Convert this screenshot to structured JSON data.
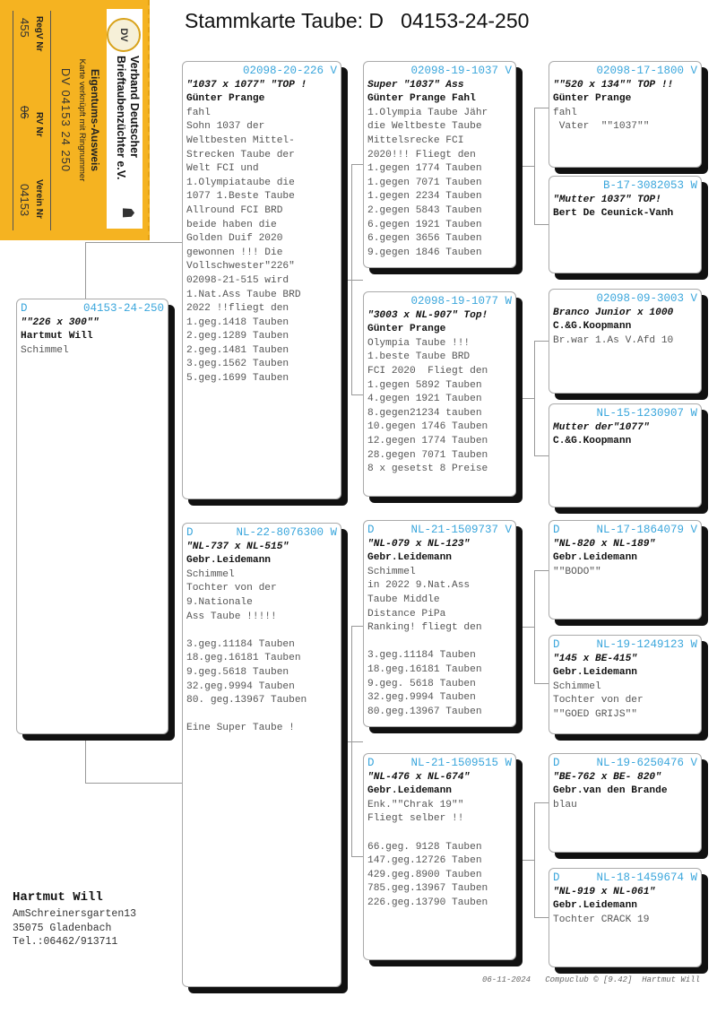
{
  "title": "Stammkarte Taube: D   04153-24-250",
  "card": {
    "org_line1": "Verband Deutscher",
    "org_line2": "Brieftaubenzüchter e.V.",
    "heading": "Eigentums-Ausweis",
    "subheading": "Karte verknüpft mit Ringnummer",
    "ring": "DV 04153 24 250",
    "labels": [
      "RegV Nr",
      "RV Nr",
      "Verein Nr"
    ],
    "values": [
      "455",
      "06",
      "04153"
    ],
    "logo_text": "DV",
    "background_color": "#f5b321"
  },
  "animals": [
    {
      "prefix": "D",
      "ring": "04153-24-250",
      "sex": "",
      "italic": "\"\"226 x 300\"\"",
      "breeder": "Hartmut Will",
      "lines": [
        "Schimmel"
      ]
    },
    {
      "prefix": "",
      "ring": "02098-20-226",
      "sex": "V",
      "italic": "\"1037 x 1077\" \"TOP !",
      "breeder": "Günter Prange",
      "lines": [
        "fahl",
        "Sohn 1037 der",
        "Weltbesten Mittel-",
        "Strecken Taube der",
        "Welt FCI und",
        "1.Olympiataube die",
        "1077 1.Beste Taube",
        "Allround FCI BRD",
        "beide haben die",
        "Golden Duif 2020",
        "gewonnen !!! Die",
        "Vollschwester\"226\"",
        "02098-21-515 wird",
        "1.Nat.Ass Taube BRD",
        "2022 !!fliegt den",
        "1.geg.1418 Tauben",
        "2.geg.1289 Tauben",
        "2.geg.1481 Tauben",
        "3.geg.1562 Tauben",
        "5.geg.1699 Tauben"
      ]
    },
    {
      "prefix": "D",
      "ring": "NL-22-8076300",
      "sex": "W",
      "italic": "\"NL-737 x NL-515\"",
      "breeder": "Gebr.Leidemann",
      "lines": [
        "Schimmel",
        "Tochter von der",
        "9.Nationale",
        "Ass Taube !!!!!",
        "",
        "3.geg.11184 Tauben",
        "18.geg.16181 Tauben",
        "9.geg.5618 Tauben",
        "32.geg.9994 Tauben",
        "80. geg.13967 Tauben",
        "",
        "Eine Super Taube !"
      ]
    },
    {
      "prefix": "",
      "ring": "02098-19-1037",
      "sex": "V",
      "italic": "Super \"1037\" Ass",
      "breeder": "Günter Prange Fahl",
      "lines": [
        "1.Olympia Taube Jähr",
        "die Weltbeste Taube",
        "Mittelsrecke FCI",
        "2020!!! Fliegt den",
        "1.gegen 1774 Tauben",
        "1.gegen 7071 Tauben",
        "1.gegen 2234 Tauben",
        "2.gegen 5843 Tauben",
        "6.gegen 1921 Tauben",
        "6.gegen 3656 Tauben",
        "9.gegen 1846 Tauben"
      ]
    },
    {
      "prefix": "",
      "ring": "02098-19-1077",
      "sex": "W",
      "italic": "\"3003 x NL-907\" Top!",
      "breeder": "Günter Prange",
      "lines": [
        "Olympia Taube !!!",
        "1.beste Taube BRD",
        "FCI 2020  Fliegt den",
        "1.gegen 5892 Tauben",
        "4.gegen 1921 Tauben",
        "8.gegen21234 tauben",
        "10.gegen 1746 Tauben",
        "12.gegen 1774 Tauben",
        "28.gegen 7071 Tauben",
        "8 x gesetst 8 Preise"
      ]
    },
    {
      "prefix": "D",
      "ring": "NL-21-1509737",
      "sex": "V",
      "italic": "\"NL-079 x NL-123\"",
      "breeder": "Gebr.Leidemann",
      "lines": [
        "Schimmel",
        "in 2022 9.Nat.Ass",
        "Taube Middle",
        "Distance PiPa",
        "Ranking! fliegt den",
        "",
        "3.geg.11184 Tauben",
        "18.geg.16181 Tauben",
        "9.geg. 5618 Tauben",
        "32.geg.9994 Tauben",
        "80.geg.13967 Tauben"
      ]
    },
    {
      "prefix": "D",
      "ring": "NL-21-1509515",
      "sex": "W",
      "italic": "\"NL-476 x NL-674\"",
      "breeder": "Gebr.Leidemann",
      "lines": [
        "Enk.\"\"Chrak 19\"\"",
        "Fliegt selber !!",
        "",
        "66.geg. 9128 Tauben",
        "147.geg.12726 Taben",
        "429.geg.8900 Tauben",
        "785.geg.13967 Tauben",
        "226.geg.13790 Tauben"
      ]
    },
    {
      "prefix": "",
      "ring": "02098-17-1800",
      "sex": "V",
      "italic": "\"\"520 x 134\"\" TOP !!",
      "breeder": "Günter Prange",
      "lines": [
        "fahl",
        " Vater  \"\"1037\"\""
      ]
    },
    {
      "prefix": "",
      "ring": "B-17-3082053",
      "sex": "W",
      "italic": "\"Mutter 1037\" TOP!",
      "breeder": "Bert De Ceunick-Vanh",
      "lines": []
    },
    {
      "prefix": "",
      "ring": "02098-09-3003",
      "sex": "V",
      "italic": "Branco Junior x 1000",
      "breeder": "C.&G.Koopmann",
      "lines": [
        "Br.war 1.As V.Afd 10"
      ]
    },
    {
      "prefix": "",
      "ring": "NL-15-1230907",
      "sex": "W",
      "italic": "Mutter der\"1077\"",
      "breeder": "C.&G.Koopmann",
      "lines": []
    },
    {
      "prefix": "D",
      "ring": "NL-17-1864079",
      "sex": "V",
      "italic": "\"NL-820 x NL-189\"",
      "breeder": "Gebr.Leidemann",
      "lines": [
        "\"\"BODO\"\""
      ]
    },
    {
      "prefix": "D",
      "ring": "NL-19-1249123",
      "sex": "W",
      "italic": "\"145 x BE-415\"",
      "breeder": "Gebr.Leidemann",
      "lines": [
        "Schimmel",
        "Tochter von der",
        "\"\"GOED GRIJS\"\""
      ]
    },
    {
      "prefix": "D",
      "ring": "NL-19-6250476",
      "sex": "V",
      "italic": "\"BE-762 x BE- 820\"",
      "breeder": "Gebr.van den Brande",
      "lines": [
        "blau"
      ]
    },
    {
      "prefix": "D",
      "ring": "NL-18-1459674",
      "sex": "W",
      "italic": "\"NL-919 x NL-061\"",
      "breeder": "Gebr.Leidemann",
      "lines": [
        "Tochter CRACK 19"
      ]
    }
  ],
  "owner": {
    "name": "Hartmut Will",
    "street": "AmSchreinersgarten13",
    "city": "35075  Gladenbach",
    "phone": "Tel.:06462/913711"
  },
  "footer": "06-11-2024   Compuclub © [9.42]  Hartmut Will",
  "colors": {
    "ring_number": "#3aa6dc",
    "shadow": "#111111"
  }
}
